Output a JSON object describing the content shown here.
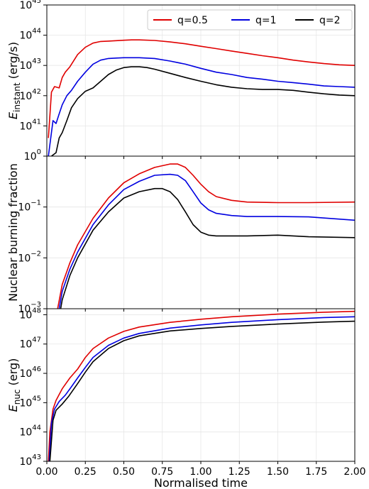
{
  "figure": {
    "x_axis": {
      "label": "Normalised time",
      "range": [
        0,
        2
      ],
      "ticks": [
        "0.00",
        "0.25",
        "0.50",
        "0.75",
        "1.00",
        "1.25",
        "1.50",
        "1.75",
        "2.00"
      ],
      "grid": true
    },
    "legend": {
      "placement": "top-right (top panel)",
      "entries": [
        {
          "label": "q=0.5",
          "color": "#e00000"
        },
        {
          "label": "q=1",
          "color": "#0000e0"
        },
        {
          "label": "q=2",
          "color": "#000000"
        }
      ]
    }
  },
  "chart_data": [
    {
      "type": "line",
      "panel": "top",
      "ylabel_main": "E",
      "ylabel_sub": "instant",
      "ylabel_unit": " (erg/s)",
      "yscale": "log",
      "ylim": [
        1e+40,
        1e+45
      ],
      "ytick_labels": [
        {
          "base": "10",
          "exp": "41"
        },
        {
          "base": "10",
          "exp": "42"
        },
        {
          "base": "10",
          "exp": "43"
        },
        {
          "base": "10",
          "exp": "44"
        },
        {
          "base": "10",
          "exp": "45"
        }
      ],
      "series": [
        {
          "name": "q=0.5",
          "color": "#e00000",
          "x": [
            0.01,
            0.03,
            0.05,
            0.08,
            0.1,
            0.12,
            0.15,
            0.2,
            0.25,
            0.3,
            0.35,
            0.4,
            0.45,
            0.5,
            0.55,
            0.6,
            0.7,
            0.8,
            0.9,
            1.0,
            1.1,
            1.2,
            1.3,
            1.4,
            1.5,
            1.6,
            1.7,
            1.8,
            1.9,
            2.0
          ],
          "y": [
            4e+40,
            1.3e+42,
            2e+42,
            1.8e+42,
            4e+42,
            6e+42,
            9e+42,
            2.3e+43,
            4e+43,
            5.5e+43,
            6.2e+43,
            6.4e+43,
            6.6e+43,
            6.8e+43,
            7e+43,
            7e+43,
            6.7e+43,
            6e+43,
            5.2e+43,
            4.3e+43,
            3.6e+43,
            3e+43,
            2.5e+43,
            2.1e+43,
            1.8e+43,
            1.5e+43,
            1.3e+43,
            1.15e+43,
            1.05e+43,
            1e+43
          ]
        },
        {
          "name": "q=1",
          "color": "#0000e0",
          "x": [
            0.01,
            0.04,
            0.06,
            0.08,
            0.1,
            0.13,
            0.16,
            0.2,
            0.25,
            0.3,
            0.35,
            0.4,
            0.45,
            0.5,
            0.6,
            0.7,
            0.8,
            0.9,
            1.0,
            1.1,
            1.2,
            1.3,
            1.4,
            1.5,
            1.6,
            1.7,
            1.8,
            1.9,
            2.0
          ],
          "y": [
            1e+40,
            1.5e+41,
            1.2e+41,
            2.5e+41,
            5e+41,
            1e+42,
            1.5e+42,
            3e+42,
            6e+42,
            1.1e+43,
            1.5e+43,
            1.7e+43,
            1.75e+43,
            1.8e+43,
            1.8e+43,
            1.7e+43,
            1.4e+43,
            1.1e+43,
            8e+42,
            6e+42,
            5e+42,
            4e+42,
            3.5e+42,
            3e+42,
            2.7e+42,
            2.4e+42,
            2.1e+42,
            2e+42,
            1.9e+42
          ]
        },
        {
          "name": "q=2",
          "color": "#000000",
          "x": [
            0.03,
            0.06,
            0.08,
            0.1,
            0.13,
            0.16,
            0.2,
            0.25,
            0.3,
            0.35,
            0.4,
            0.45,
            0.5,
            0.55,
            0.6,
            0.65,
            0.7,
            0.8,
            0.9,
            1.0,
            1.1,
            1.2,
            1.3,
            1.4,
            1.5,
            1.6,
            1.7,
            1.8,
            1.9,
            2.0
          ],
          "y": [
            1e+40,
            1.3e+40,
            4e+40,
            6e+40,
            1.5e+41,
            4e+41,
            8e+41,
            1.4e+42,
            1.8e+42,
            3e+42,
            5e+42,
            7e+42,
            8.5e+42,
            9e+42,
            9e+42,
            8.5e+42,
            7.5e+42,
            5.5e+42,
            4e+42,
            3e+42,
            2.3e+42,
            1.9e+42,
            1.7e+42,
            1.6e+42,
            1.6e+42,
            1.5e+42,
            1.3e+42,
            1.15e+42,
            1.05e+42,
            1e+42
          ]
        }
      ]
    },
    {
      "type": "line",
      "panel": "middle",
      "ylabel": "Nuclear burning fraction",
      "yscale": "log",
      "ylim": [
        0.001,
        1
      ],
      "ytick_labels": [
        {
          "base": "10",
          "exp": "−3"
        },
        {
          "base": "10",
          "exp": "−2"
        },
        {
          "base": "10",
          "exp": "−1"
        },
        {
          "base": "10",
          "exp": "0"
        }
      ],
      "series": [
        {
          "name": "q=0.5",
          "color": "#e00000",
          "x": [
            0.07,
            0.1,
            0.15,
            0.2,
            0.3,
            0.4,
            0.5,
            0.6,
            0.7,
            0.8,
            0.85,
            0.9,
            0.95,
            1.0,
            1.05,
            1.1,
            1.2,
            1.3,
            1.5,
            1.7,
            2.0
          ],
          "y": [
            0.001,
            0.003,
            0.008,
            0.018,
            0.06,
            0.15,
            0.3,
            0.45,
            0.6,
            0.7,
            0.7,
            0.6,
            0.42,
            0.28,
            0.2,
            0.16,
            0.135,
            0.125,
            0.122,
            0.122,
            0.125
          ]
        },
        {
          "name": "q=1",
          "color": "#0000e0",
          "x": [
            0.08,
            0.1,
            0.15,
            0.2,
            0.3,
            0.4,
            0.5,
            0.6,
            0.7,
            0.8,
            0.85,
            0.9,
            0.95,
            1.0,
            1.05,
            1.1,
            1.2,
            1.3,
            1.5,
            1.7,
            2.0
          ],
          "y": [
            0.001,
            0.0022,
            0.006,
            0.013,
            0.045,
            0.11,
            0.22,
            0.32,
            0.42,
            0.44,
            0.42,
            0.33,
            0.2,
            0.12,
            0.088,
            0.075,
            0.068,
            0.065,
            0.065,
            0.064,
            0.055
          ]
        },
        {
          "name": "q=2",
          "color": "#000000",
          "x": [
            0.09,
            0.1,
            0.15,
            0.2,
            0.3,
            0.4,
            0.5,
            0.6,
            0.7,
            0.75,
            0.8,
            0.85,
            0.9,
            0.95,
            1.0,
            1.05,
            1.1,
            1.3,
            1.5,
            1.7,
            2.0
          ],
          "y": [
            0.001,
            0.0015,
            0.0045,
            0.01,
            0.035,
            0.08,
            0.15,
            0.2,
            0.23,
            0.23,
            0.2,
            0.14,
            0.08,
            0.045,
            0.032,
            0.028,
            0.027,
            0.027,
            0.028,
            0.026,
            0.025
          ]
        }
      ]
    },
    {
      "type": "line",
      "panel": "bottom",
      "ylabel_main": "E",
      "ylabel_sub": "nuc",
      "ylabel_unit": " (erg)",
      "yscale": "log",
      "ylim": [
        1e+43,
        1.6e+48
      ],
      "ytick_labels": [
        {
          "base": "10",
          "exp": "43"
        },
        {
          "base": "10",
          "exp": "44"
        },
        {
          "base": "10",
          "exp": "45"
        },
        {
          "base": "10",
          "exp": "46"
        },
        {
          "base": "10",
          "exp": "47"
        },
        {
          "base": "10",
          "exp": "48"
        }
      ],
      "series": [
        {
          "name": "q=0.5",
          "color": "#e00000",
          "x": [
            0.01,
            0.02,
            0.04,
            0.06,
            0.1,
            0.15,
            0.2,
            0.25,
            0.3,
            0.4,
            0.5,
            0.6,
            0.8,
            1.0,
            1.2,
            1.5,
            1.8,
            2.0
          ],
          "y": [
            1e+43,
            1e+44,
            6e+44,
            1.2e+45,
            3e+45,
            7e+45,
            1.4e+46,
            3.5e+46,
            7e+46,
            1.6e+47,
            2.7e+47,
            3.8e+47,
            5.5e+47,
            7e+47,
            8.5e+47,
            1.05e+48,
            1.22e+48,
            1.3e+48
          ]
        },
        {
          "name": "q=1",
          "color": "#0000e0",
          "x": [
            0.015,
            0.03,
            0.05,
            0.08,
            0.12,
            0.16,
            0.2,
            0.25,
            0.3,
            0.4,
            0.5,
            0.6,
            0.8,
            1.0,
            1.2,
            1.5,
            1.8,
            2.0
          ],
          "y": [
            1e+43,
            2e+44,
            6e+44,
            1.1e+45,
            1.8e+45,
            3.5e+45,
            7e+45,
            1.6e+46,
            3.5e+46,
            9e+46,
            1.6e+47,
            2.3e+47,
            3.5e+47,
            4.5e+47,
            5.5e+47,
            6.8e+47,
            8e+47,
            8.5e+47
          ]
        },
        {
          "name": "q=2",
          "color": "#000000",
          "x": [
            0.02,
            0.04,
            0.06,
            0.1,
            0.14,
            0.2,
            0.25,
            0.3,
            0.4,
            0.5,
            0.6,
            0.8,
            1.0,
            1.2,
            1.5,
            1.8,
            2.0
          ],
          "y": [
            1e+43,
            2.5e+44,
            5.5e+44,
            9e+44,
            1.6e+45,
            4.5e+45,
            1.1e+46,
            2.5e+46,
            7e+46,
            1.3e+47,
            1.9e+47,
            2.8e+47,
            3.4e+47,
            4e+47,
            4.8e+47,
            5.6e+47,
            6e+47
          ]
        }
      ]
    }
  ]
}
